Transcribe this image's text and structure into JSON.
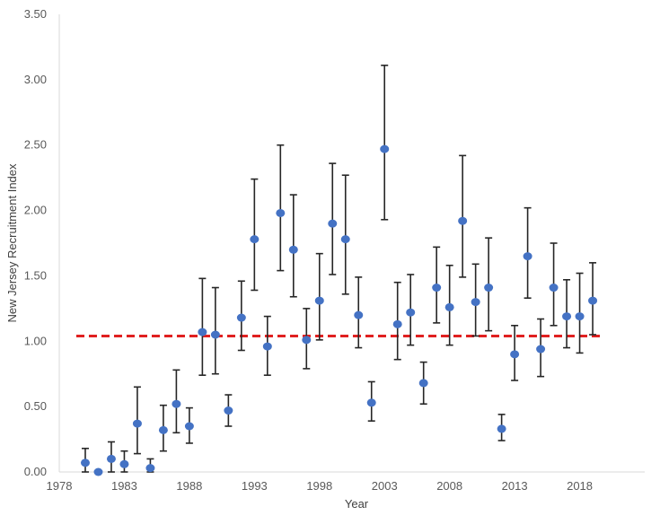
{
  "chart_data": {
    "type": "scatter",
    "title": "",
    "xlabel": "Year",
    "ylabel": "New Jersey Recruitment Index",
    "xlim": [
      1978,
      2023
    ],
    "ylim": [
      0,
      3.5
    ],
    "x_ticks": [
      1978,
      1983,
      1988,
      1993,
      1998,
      2003,
      2008,
      2013,
      2018
    ],
    "x_tick_labels": [
      "1978",
      "1983",
      "1988",
      "1993",
      "1998",
      "2003",
      "2008",
      "2013",
      "2018"
    ],
    "y_ticks": [
      0,
      0.5,
      1.0,
      1.5,
      2.0,
      2.5,
      3.0,
      3.5
    ],
    "y_tick_labels": [
      "0.00",
      "0.50",
      "1.00",
      "1.50",
      "2.00",
      "2.50",
      "3.00",
      "3.50"
    ],
    "grid": false,
    "reference_line": {
      "y": 1.04,
      "x_start": 1980,
      "x_end": 2019,
      "color": "#e02020",
      "style": "dashed"
    },
    "series": [
      {
        "name": "New Jersey Recruitment Index",
        "color": "#4472c4",
        "points": [
          {
            "x": 1980,
            "y": 0.07,
            "lo": 0.0,
            "hi": 0.18
          },
          {
            "x": 1981,
            "y": 0.0,
            "lo": 0.0,
            "hi": 0.0
          },
          {
            "x": 1982,
            "y": 0.1,
            "lo": 0.0,
            "hi": 0.23
          },
          {
            "x": 1983,
            "y": 0.06,
            "lo": 0.0,
            "hi": 0.16
          },
          {
            "x": 1984,
            "y": 0.37,
            "lo": 0.14,
            "hi": 0.65
          },
          {
            "x": 1985,
            "y": 0.03,
            "lo": 0.0,
            "hi": 0.1
          },
          {
            "x": 1986,
            "y": 0.32,
            "lo": 0.16,
            "hi": 0.51
          },
          {
            "x": 1987,
            "y": 0.52,
            "lo": 0.3,
            "hi": 0.78
          },
          {
            "x": 1988,
            "y": 0.35,
            "lo": 0.22,
            "hi": 0.49
          },
          {
            "x": 1989,
            "y": 1.07,
            "lo": 0.74,
            "hi": 1.48
          },
          {
            "x": 1990,
            "y": 1.05,
            "lo": 0.75,
            "hi": 1.41
          },
          {
            "x": 1991,
            "y": 0.47,
            "lo": 0.35,
            "hi": 0.59
          },
          {
            "x": 1992,
            "y": 1.18,
            "lo": 0.93,
            "hi": 1.46
          },
          {
            "x": 1993,
            "y": 1.78,
            "lo": 1.39,
            "hi": 2.24
          },
          {
            "x": 1994,
            "y": 0.96,
            "lo": 0.74,
            "hi": 1.19
          },
          {
            "x": 1995,
            "y": 1.98,
            "lo": 1.54,
            "hi": 2.5
          },
          {
            "x": 1996,
            "y": 1.7,
            "lo": 1.34,
            "hi": 2.12
          },
          {
            "x": 1997,
            "y": 1.01,
            "lo": 0.79,
            "hi": 1.25
          },
          {
            "x": 1998,
            "y": 1.31,
            "lo": 1.01,
            "hi": 1.67
          },
          {
            "x": 1999,
            "y": 1.9,
            "lo": 1.51,
            "hi": 2.36
          },
          {
            "x": 2000,
            "y": 1.78,
            "lo": 1.36,
            "hi": 2.27
          },
          {
            "x": 2001,
            "y": 1.2,
            "lo": 0.95,
            "hi": 1.49
          },
          {
            "x": 2002,
            "y": 0.53,
            "lo": 0.39,
            "hi": 0.69
          },
          {
            "x": 2003,
            "y": 2.47,
            "lo": 1.93,
            "hi": 3.11
          },
          {
            "x": 2004,
            "y": 1.13,
            "lo": 0.86,
            "hi": 1.45
          },
          {
            "x": 2005,
            "y": 1.22,
            "lo": 0.97,
            "hi": 1.51
          },
          {
            "x": 2006,
            "y": 0.68,
            "lo": 0.52,
            "hi": 0.84
          },
          {
            "x": 2007,
            "y": 1.41,
            "lo": 1.14,
            "hi": 1.72
          },
          {
            "x": 2008,
            "y": 1.26,
            "lo": 0.97,
            "hi": 1.58
          },
          {
            "x": 2009,
            "y": 1.92,
            "lo": 1.49,
            "hi": 2.42
          },
          {
            "x": 2010,
            "y": 1.3,
            "lo": 1.04,
            "hi": 1.59
          },
          {
            "x": 2011,
            "y": 1.41,
            "lo": 1.08,
            "hi": 1.79
          },
          {
            "x": 2012,
            "y": 0.33,
            "lo": 0.24,
            "hi": 0.44
          },
          {
            "x": 2013,
            "y": 0.9,
            "lo": 0.7,
            "hi": 1.12
          },
          {
            "x": 2014,
            "y": 1.65,
            "lo": 1.33,
            "hi": 2.02
          },
          {
            "x": 2015,
            "y": 0.94,
            "lo": 0.73,
            "hi": 1.17
          },
          {
            "x": 2016,
            "y": 1.41,
            "lo": 1.12,
            "hi": 1.75
          },
          {
            "x": 2017,
            "y": 1.19,
            "lo": 0.95,
            "hi": 1.47
          },
          {
            "x": 2018,
            "y": 1.19,
            "lo": 0.91,
            "hi": 1.52
          },
          {
            "x": 2019,
            "y": 1.31,
            "lo": 1.05,
            "hi": 1.6
          }
        ]
      }
    ]
  }
}
